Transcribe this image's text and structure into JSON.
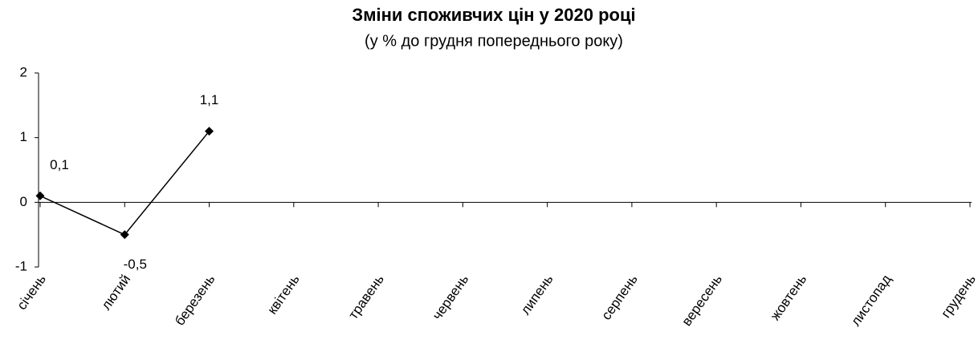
{
  "chart_data": {
    "type": "line",
    "title": "Зміни споживчих цін у 2020 році",
    "subtitle": "(у %  до грудня попереднього року)",
    "categories": [
      "січень",
      "лютий",
      "березень",
      "квітень",
      "травень",
      "червень",
      "липень",
      "серпень",
      "вересень",
      "жовтень",
      "листопад",
      "грудень"
    ],
    "series": [
      {
        "color": "#000000",
        "values": [
          0.1,
          -0.5,
          1.1,
          null,
          null,
          null,
          null,
          null,
          null,
          null,
          null,
          null
        ],
        "value_labels": [
          "0,1",
          "-0,5",
          "1,1",
          null,
          null,
          null,
          null,
          null,
          null,
          null,
          null,
          null
        ]
      }
    ],
    "ylim": [
      -1,
      2
    ],
    "yticks": [
      -1,
      0,
      1,
      2
    ],
    "grid": false
  }
}
